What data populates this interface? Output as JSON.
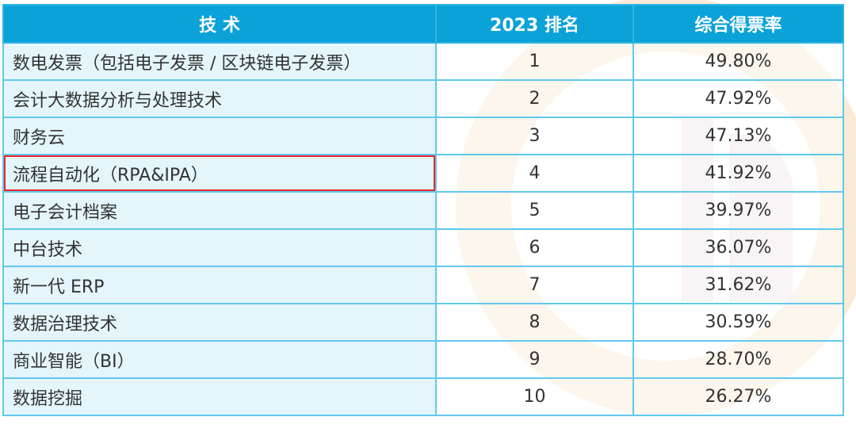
{
  "table": {
    "headers": [
      "技 术",
      "2023 排名",
      "综合得票率"
    ],
    "highlight_row": 3,
    "highlight_color": "#e8262a",
    "header_color": "#0ba2d8",
    "rows": [
      [
        "数电发票（包括电子发票 / 区块链电子发票）",
        "1",
        "49.80%"
      ],
      [
        "会计大数据分析与处理技术",
        "2",
        "47.92%"
      ],
      [
        "财务云",
        "3",
        "47.13%"
      ],
      [
        "流程自动化（RPA&IPA）",
        "4",
        "41.92%"
      ],
      [
        "电子会计档案",
        "5",
        "39.97%"
      ],
      [
        "中台技术",
        "6",
        "36.07%"
      ],
      [
        "新一代 ERP",
        "7",
        "31.62%"
      ],
      [
        "数据治理技术",
        "8",
        "30.59%"
      ],
      [
        "商业智能（BI）",
        "9",
        "28.70%"
      ],
      [
        "数据挖掘",
        "10",
        "26.27%"
      ]
    ]
  }
}
